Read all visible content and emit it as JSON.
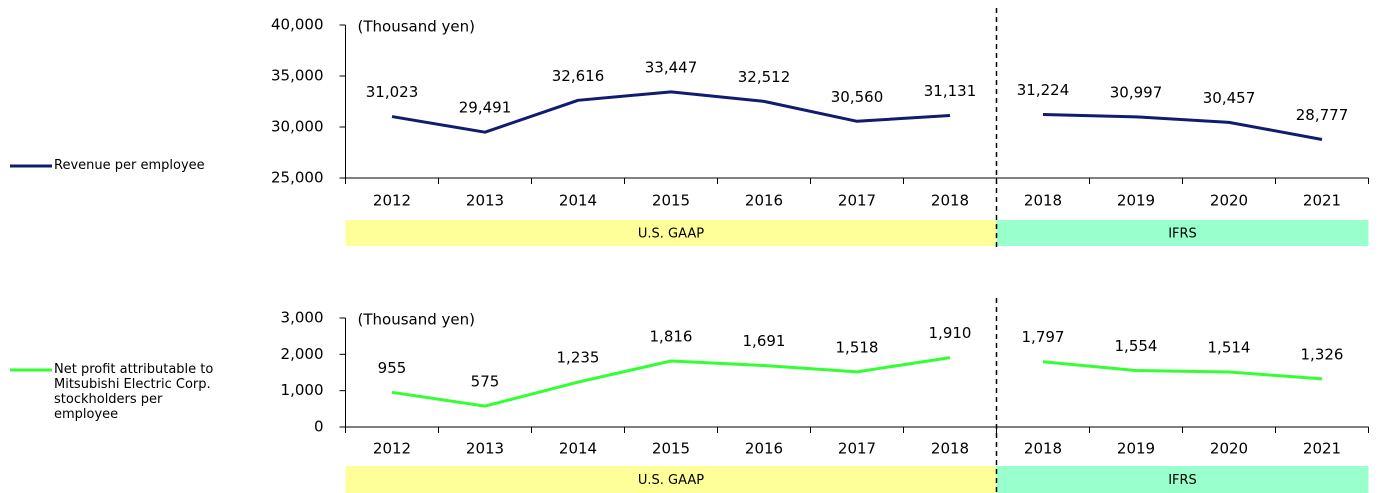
{
  "chart_data": [
    {
      "type": "line",
      "annotation": "(Thousand yen)",
      "legend": "left",
      "ylim": [
        25000,
        40000
      ],
      "yticks": [
        {
          "value": 25000,
          "label": "25,000"
        },
        {
          "value": 30000,
          "label": "30,000"
        },
        {
          "value": 35000,
          "label": "35,000"
        },
        {
          "value": 40000,
          "label": "40,000"
        }
      ],
      "series": [
        {
          "name": "Revenue per employee",
          "color": "#0f1c70"
        }
      ],
      "groups": [
        {
          "name": "U.S. GAAP",
          "color": "#ffff99",
          "categories": [
            "2012",
            "2013",
            "2014",
            "2015",
            "2016",
            "2017",
            "2018"
          ],
          "values": [
            31023,
            29491,
            32616,
            33447,
            32512,
            30560,
            31131
          ],
          "value_labels": [
            "31,023",
            "29,491",
            "32,616",
            "33,447",
            "32,512",
            "30,560",
            "31,131"
          ]
        },
        {
          "name": "IFRS",
          "color": "#99ffcc",
          "categories": [
            "2018",
            "2019",
            "2020",
            "2021"
          ],
          "values": [
            31224,
            30997,
            30457,
            28777
          ],
          "value_labels": [
            "31,224",
            "30,997",
            "30,457",
            "28,777"
          ]
        }
      ]
    },
    {
      "type": "line",
      "annotation": "(Thousand yen)",
      "legend": "left",
      "ylim": [
        0,
        3000
      ],
      "yticks": [
        0,
        {
          "value": 1000,
          "label": "1,000"
        },
        {
          "value": 2000,
          "label": "2,000"
        },
        {
          "value": 3000,
          "label": "3,000"
        }
      ],
      "series": [
        {
          "name": "Net profit attributable to Mitsubishi Electric Corp. stockholders per employee",
          "color": "#33ff33"
        }
      ],
      "groups": [
        {
          "name": "U.S. GAAP",
          "color": "#ffff99",
          "categories": [
            "2012",
            "2013",
            "2014",
            "2015",
            "2016",
            "2017",
            "2018"
          ],
          "values": [
            955,
            575,
            1235,
            1816,
            1691,
            1518,
            1910
          ],
          "value_labels": [
            "955",
            "575",
            "1,235",
            "1,816",
            "1,691",
            "1,518",
            "1,910"
          ]
        },
        {
          "name": "IFRS",
          "color": "#99ffcc",
          "categories": [
            "2018",
            "2019",
            "2020",
            "2021"
          ],
          "values": [
            1797,
            1554,
            1514,
            1326
          ],
          "value_labels": [
            "1,797",
            "1,554",
            "1,514",
            "1,326"
          ]
        }
      ]
    }
  ]
}
